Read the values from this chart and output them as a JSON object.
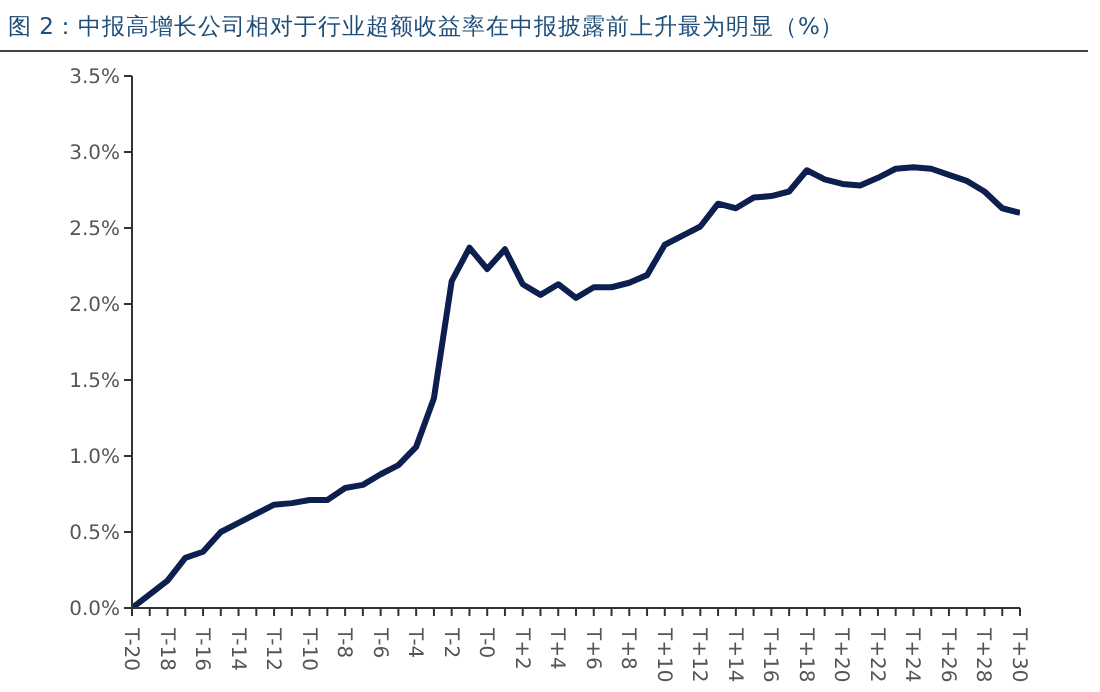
{
  "chart_data": {
    "type": "line",
    "title": "图 2：中报高增长公司相对于行业超额收益率在中报披露前上升最为明显（%）",
    "categories": [
      "T-20",
      null,
      "T-18",
      null,
      "T-16",
      null,
      "T-14",
      null,
      "T-12",
      null,
      "T-10",
      null,
      "T-8",
      null,
      "T-6",
      null,
      "T-4",
      null,
      "T-2",
      null,
      "T-0",
      null,
      "T+2",
      null,
      "T+4",
      null,
      "T+6",
      null,
      "T+8",
      null,
      "T+10",
      null,
      "T+12",
      null,
      "T+14",
      null,
      "T+16",
      null,
      "T+18",
      null,
      "T+20",
      null,
      "T+22",
      null,
      "T+24",
      null,
      "T+26",
      null,
      "T+28",
      null,
      "T+30"
    ],
    "series": [
      {
        "color": "#0d1f4e",
        "values": [
          0.0,
          0.09,
          0.18,
          0.33,
          0.37,
          0.5,
          0.56,
          0.62,
          0.68,
          0.69,
          0.71,
          0.71,
          0.79,
          0.81,
          0.88,
          0.94,
          1.06,
          1.38,
          2.15,
          2.37,
          2.23,
          2.36,
          2.13,
          2.06,
          2.13,
          2.04,
          2.11,
          2.11,
          2.14,
          2.19,
          2.39,
          2.45,
          2.51,
          2.66,
          2.63,
          2.7,
          2.71,
          2.74,
          2.88,
          2.82,
          2.79,
          2.78,
          2.83,
          2.89,
          2.9,
          2.89,
          2.85,
          2.81,
          2.74,
          2.63,
          2.6
        ]
      }
    ],
    "ylim": [
      0,
      3.5
    ],
    "yticks": [
      {
        "value": 0,
        "label": "0.0%"
      },
      {
        "value": 0.5,
        "label": "0.5%"
      },
      {
        "value": 1,
        "label": "1.0%"
      },
      {
        "value": 1.5,
        "label": "1.5%"
      },
      {
        "value": 2,
        "label": "2.0%"
      },
      {
        "value": 2.5,
        "label": "2.5%"
      },
      {
        "value": 3,
        "label": "3.0%"
      },
      {
        "value": 3.5,
        "label": "3.5%"
      }
    ],
    "grid": false,
    "legend": false,
    "marker": "none",
    "line_style": "solid"
  }
}
